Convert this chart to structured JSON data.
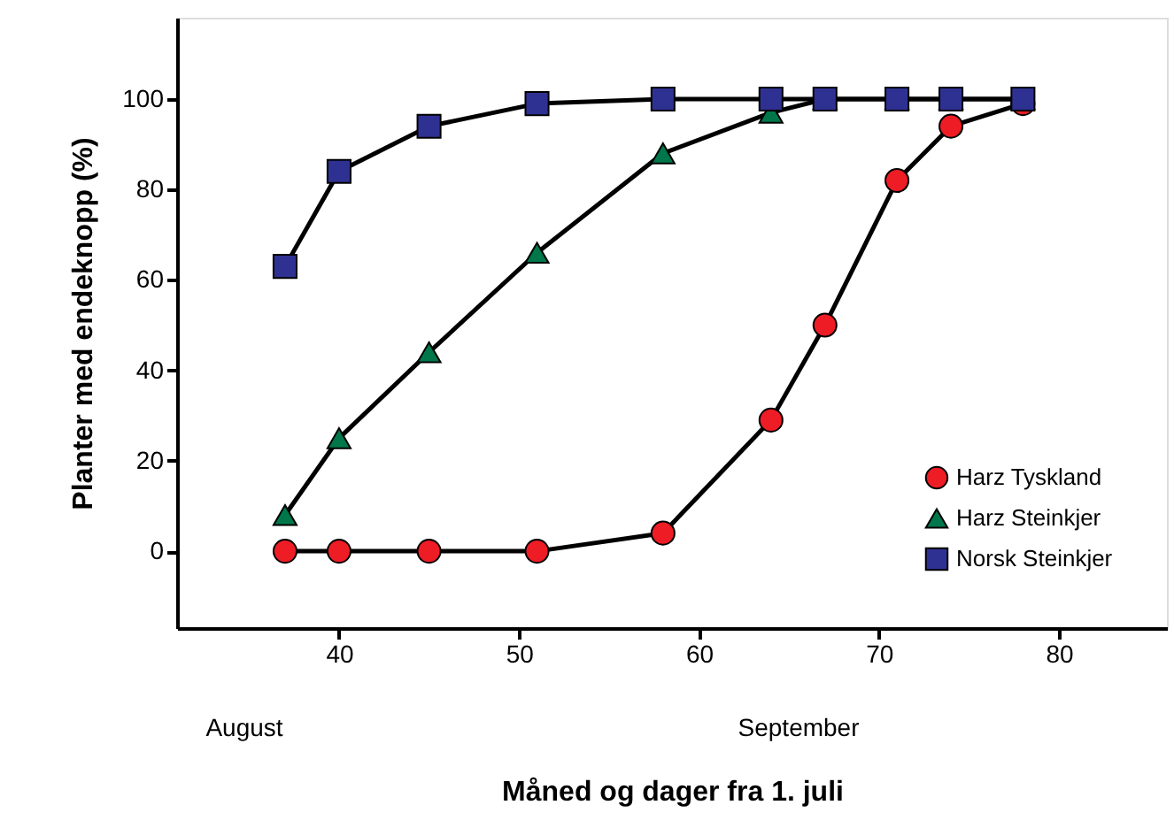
{
  "chart_data": {
    "type": "line",
    "xlabel": "Måned og dager fra 1. juli",
    "ylabel": "Planter med endeknopp (%)",
    "annotations": [
      "August",
      "September"
    ],
    "x": [
      37,
      40,
      45,
      51,
      58,
      64,
      67,
      71,
      74,
      78
    ],
    "series": [
      {
        "name": "Harz Tyskland",
        "color": "#ee1c25",
        "marker": "circle",
        "values": [
          0,
          0,
          0,
          0,
          4,
          29,
          50,
          82,
          94,
          99
        ]
      },
      {
        "name": "Harz Steinkjer",
        "color": "#00774a",
        "marker": "triangle",
        "values": [
          8,
          25,
          44,
          66,
          88,
          97,
          100,
          100,
          100,
          100
        ]
      },
      {
        "name": "Norsk Steinkjer",
        "color": "#2e3192",
        "marker": "square",
        "values": [
          63,
          84,
          94,
          99,
          100,
          100,
          100,
          100,
          100,
          100
        ]
      }
    ],
    "xlim": [
      31,
      86
    ],
    "ylim": [
      -17,
      118
    ],
    "xticks": [
      40,
      50,
      60,
      70,
      80
    ],
    "yticks": [
      0,
      20,
      40,
      60,
      80,
      100
    ],
    "grid": false,
    "legend": "bottom right",
    "line_style": "solid"
  }
}
